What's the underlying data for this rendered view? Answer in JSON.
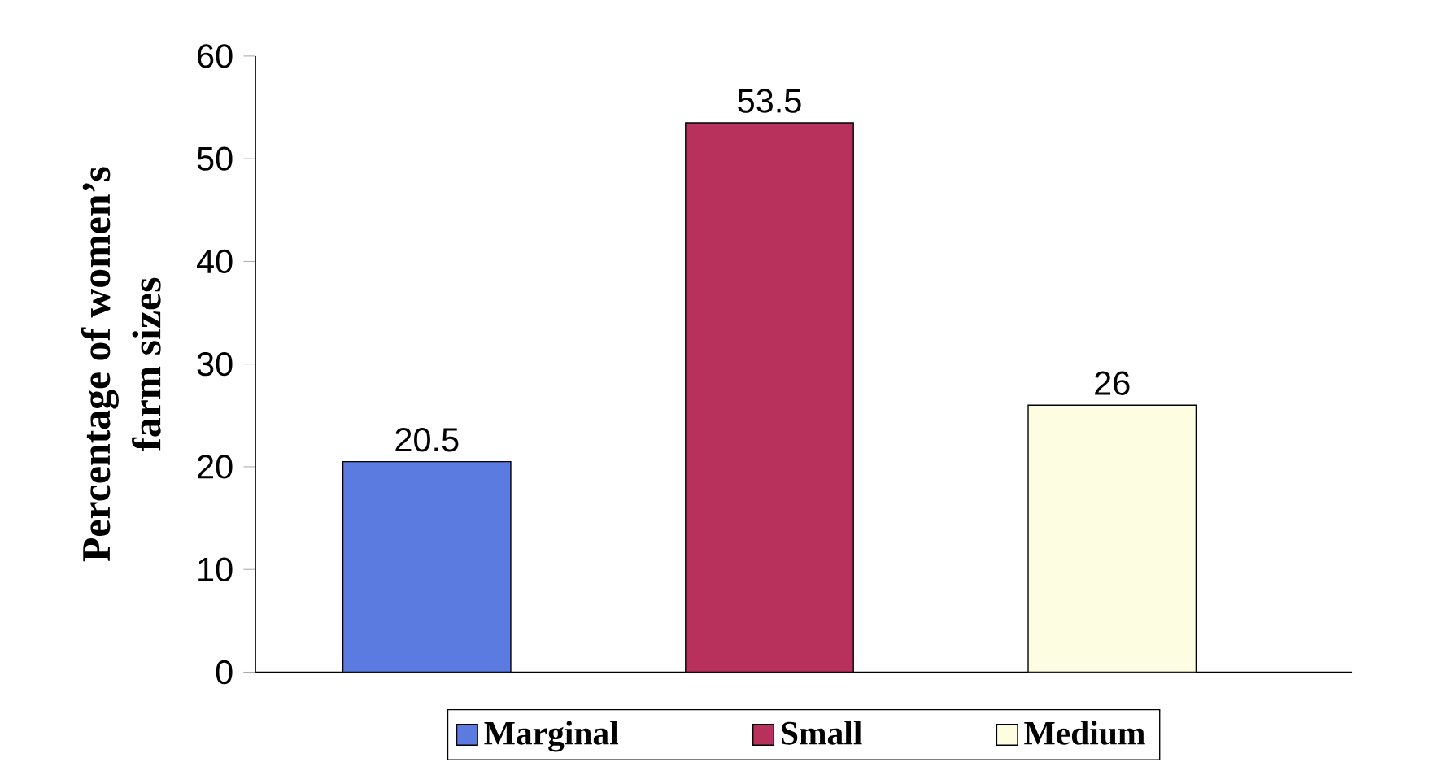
{
  "chart_data": {
    "type": "bar",
    "ylabel": "Percentage of women’s farm sizes",
    "categories": [
      null,
      null,
      null
    ],
    "series": [
      {
        "name": "Marginal",
        "color": "#5b7be0",
        "values": [
          20.5,
          null,
          null
        ]
      },
      {
        "name": "Small",
        "color": "#b8305c",
        "values": [
          null,
          53.5,
          null
        ]
      },
      {
        "name": "Medium",
        "color": "#fdfde2",
        "values": [
          null,
          null,
          26
        ]
      }
    ],
    "ylim": [
      0,
      60
    ],
    "yticks": [
      0,
      10,
      20,
      30,
      40,
      50,
      60
    ],
    "data_labels": true,
    "legend": "bottom"
  }
}
